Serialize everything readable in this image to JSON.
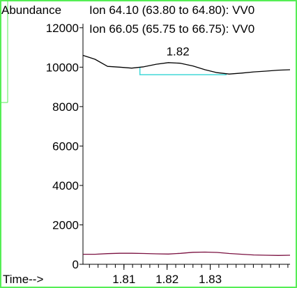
{
  "colors": {
    "frame": "#55ee55",
    "background": "#ffffff",
    "axis": "#000000",
    "integration": "#40d8d8"
  },
  "chart_data": {
    "type": "line",
    "ylabel": "Abundance",
    "xlabel": "Time-->",
    "xlim": [
      1.8005,
      1.8485
    ],
    "ylim": [
      0,
      12700
    ],
    "y_ticks": [
      0,
      2000,
      4000,
      6000,
      8000,
      10000,
      12000
    ],
    "y_tick_labels": [
      "0",
      "2000",
      "4000",
      "6000",
      "8000",
      "10000",
      "12000"
    ],
    "x_ticks": [
      1.81,
      1.82,
      1.83
    ],
    "x_tick_labels": [
      "1.81",
      "1.82",
      "1.83"
    ],
    "x_minor_step": 0.002,
    "series": [
      {
        "name": "Ion  64.10 (63.80 to 64.80): VV0",
        "color": "#000000",
        "x": [
          1.8005,
          1.8033,
          1.8062,
          1.809,
          1.8118,
          1.8146,
          1.8175,
          1.8203,
          1.8231,
          1.826,
          1.8288,
          1.8316,
          1.8344,
          1.8373,
          1.8401,
          1.8429,
          1.8458,
          1.8485
        ],
        "y": [
          10600,
          10400,
          10040,
          10000,
          9950,
          10020,
          10150,
          10230,
          10200,
          10060,
          9870,
          9720,
          9650,
          9700,
          9760,
          9800,
          9850,
          9870
        ]
      },
      {
        "name": "Ion  66.05 (65.75 to 66.75): VV0",
        "color": "#7a1040",
        "x": [
          1.8005,
          1.8033,
          1.8062,
          1.809,
          1.8118,
          1.8146,
          1.8175,
          1.8203,
          1.8231,
          1.826,
          1.8288,
          1.8316,
          1.8344,
          1.8373,
          1.8401,
          1.8429,
          1.8458,
          1.8485
        ],
        "y": [
          510,
          510,
          540,
          560,
          560,
          550,
          530,
          520,
          555,
          610,
          620,
          600,
          550,
          510,
          475,
          460,
          450,
          460
        ]
      }
    ],
    "annotations": [
      {
        "text": "1.82",
        "x": 1.8225,
        "y": 10600
      }
    ],
    "integration_baseline": {
      "x": [
        1.8137,
        1.8338
      ],
      "y": [
        9620,
        9620
      ],
      "start_y": 10000
    }
  }
}
